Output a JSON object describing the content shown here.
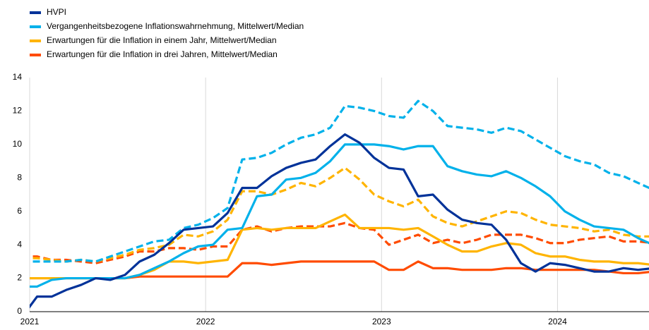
{
  "chart_data": {
    "type": "line",
    "x": [
      2020.958,
      2021.042,
      2021.125,
      2021.208,
      2021.292,
      2021.375,
      2021.458,
      2021.542,
      2021.625,
      2021.708,
      2021.792,
      2021.875,
      2021.958,
      2022.042,
      2022.125,
      2022.208,
      2022.292,
      2022.375,
      2022.458,
      2022.542,
      2022.625,
      2022.708,
      2022.792,
      2022.875,
      2022.958,
      2023.042,
      2023.125,
      2023.208,
      2023.292,
      2023.375,
      2023.458,
      2023.542,
      2023.625,
      2023.708,
      2023.792,
      2023.875,
      2023.958,
      2024.042,
      2024.125,
      2024.208,
      2024.292,
      2024.375,
      2024.458,
      2024.542
    ],
    "xlim": [
      2021,
      2024.52
    ],
    "xticks": [
      2021,
      2022,
      2023,
      2024
    ],
    "ylim": [
      0,
      14
    ],
    "yticks": [
      0,
      2,
      4,
      6,
      8,
      10,
      12,
      14
    ],
    "grid": true,
    "legend": "top-left",
    "series": [
      {
        "name": "HVPI",
        "color": "#003299",
        "values": [
          -0.3,
          0.9,
          0.9,
          1.3,
          1.6,
          2.0,
          1.9,
          2.2,
          3.0,
          3.4,
          4.1,
          4.9,
          5.0,
          5.1,
          5.9,
          7.4,
          7.4,
          8.1,
          8.6,
          8.9,
          9.1,
          9.9,
          10.6,
          10.1,
          9.2,
          8.6,
          8.5,
          6.9,
          7.0,
          6.1,
          5.5,
          5.3,
          5.2,
          4.3,
          2.9,
          2.4,
          2.9,
          2.8,
          2.6,
          2.4,
          2.4,
          2.6,
          2.5,
          2.6
        ]
      },
      {
        "name": "Vergangenheitsbezogene Inflationswahrnehmung, Mittelwert/Median",
        "color": "#00b1ea",
        "mean": [
          3.0,
          3.0,
          3.0,
          3.0,
          3.1,
          3.0,
          3.3,
          3.6,
          3.9,
          4.2,
          4.3,
          5.0,
          5.2,
          5.6,
          6.2,
          9.1,
          9.2,
          9.5,
          10.0,
          10.4,
          10.6,
          11.0,
          12.3,
          12.2,
          12.0,
          11.7,
          11.6,
          12.6,
          12.0,
          11.1,
          11.0,
          10.9,
          10.7,
          11.0,
          10.8,
          10.3,
          9.8,
          9.3,
          9.0,
          8.8,
          8.3,
          8.1,
          7.7,
          7.3
        ],
        "median": [
          1.5,
          1.5,
          1.9,
          2.0,
          2.0,
          2.0,
          2.0,
          2.0,
          2.2,
          2.6,
          3.0,
          3.5,
          3.9,
          4.0,
          4.9,
          5.0,
          6.9,
          7.0,
          7.9,
          8.0,
          8.3,
          9.0,
          10.0,
          10.0,
          10.0,
          9.9,
          9.7,
          9.9,
          9.9,
          8.7,
          8.4,
          8.2,
          8.1,
          8.4,
          8.0,
          7.5,
          6.9,
          6.0,
          5.5,
          5.1,
          5.0,
          4.9,
          4.4,
          4.0
        ]
      },
      {
        "name": "Erwartungen für die Inflation in einem Jahr, Mittelwert/Median",
        "color": "#ffb400",
        "mean": [
          3.2,
          3.2,
          3.1,
          3.0,
          3.1,
          3.0,
          3.2,
          3.4,
          3.7,
          3.8,
          4.0,
          4.6,
          4.5,
          4.8,
          5.5,
          7.2,
          7.2,
          7.0,
          7.3,
          7.7,
          7.5,
          8.0,
          8.6,
          7.9,
          7.0,
          6.6,
          6.3,
          6.7,
          5.7,
          5.3,
          5.1,
          5.4,
          5.7,
          6.0,
          5.9,
          5.5,
          5.2,
          5.1,
          5.0,
          4.8,
          4.9,
          4.6,
          4.5,
          4.5
        ],
        "median": [
          2.0,
          2.0,
          2.0,
          2.0,
          2.0,
          2.0,
          2.0,
          2.0,
          2.2,
          2.5,
          3.0,
          3.0,
          2.9,
          3.0,
          3.1,
          4.9,
          5.0,
          4.9,
          5.0,
          5.0,
          5.0,
          5.4,
          5.8,
          5.0,
          5.0,
          5.0,
          4.9,
          5.0,
          4.5,
          4.0,
          3.6,
          3.6,
          3.9,
          4.1,
          4.0,
          3.5,
          3.3,
          3.3,
          3.1,
          3.0,
          3.0,
          2.9,
          2.9,
          2.8
        ]
      },
      {
        "name": "Erwartungen für die Inflation in drei Jahren, Mittelwert/Median",
        "color": "#ff4b00",
        "mean": [
          3.3,
          3.3,
          3.1,
          3.1,
          3.0,
          2.9,
          3.1,
          3.3,
          3.6,
          3.6,
          3.8,
          3.8,
          3.7,
          3.9,
          3.9,
          4.9,
          5.1,
          4.8,
          5.0,
          5.1,
          5.1,
          5.1,
          5.3,
          5.0,
          4.9,
          4.0,
          4.3,
          4.6,
          4.1,
          4.3,
          4.1,
          4.3,
          4.6,
          4.6,
          4.6,
          4.4,
          4.1,
          4.1,
          4.3,
          4.4,
          4.5,
          4.2,
          4.2,
          4.1
        ],
        "median": [
          2.0,
          2.0,
          2.0,
          2.0,
          2.0,
          2.0,
          2.0,
          2.0,
          2.1,
          2.1,
          2.1,
          2.1,
          2.1,
          2.1,
          2.1,
          2.9,
          2.9,
          2.8,
          2.9,
          3.0,
          3.0,
          3.0,
          3.0,
          3.0,
          3.0,
          2.5,
          2.5,
          3.0,
          2.6,
          2.6,
          2.5,
          2.5,
          2.5,
          2.6,
          2.6,
          2.5,
          2.5,
          2.5,
          2.5,
          2.5,
          2.4,
          2.3,
          2.3,
          2.4
        ]
      }
    ]
  }
}
